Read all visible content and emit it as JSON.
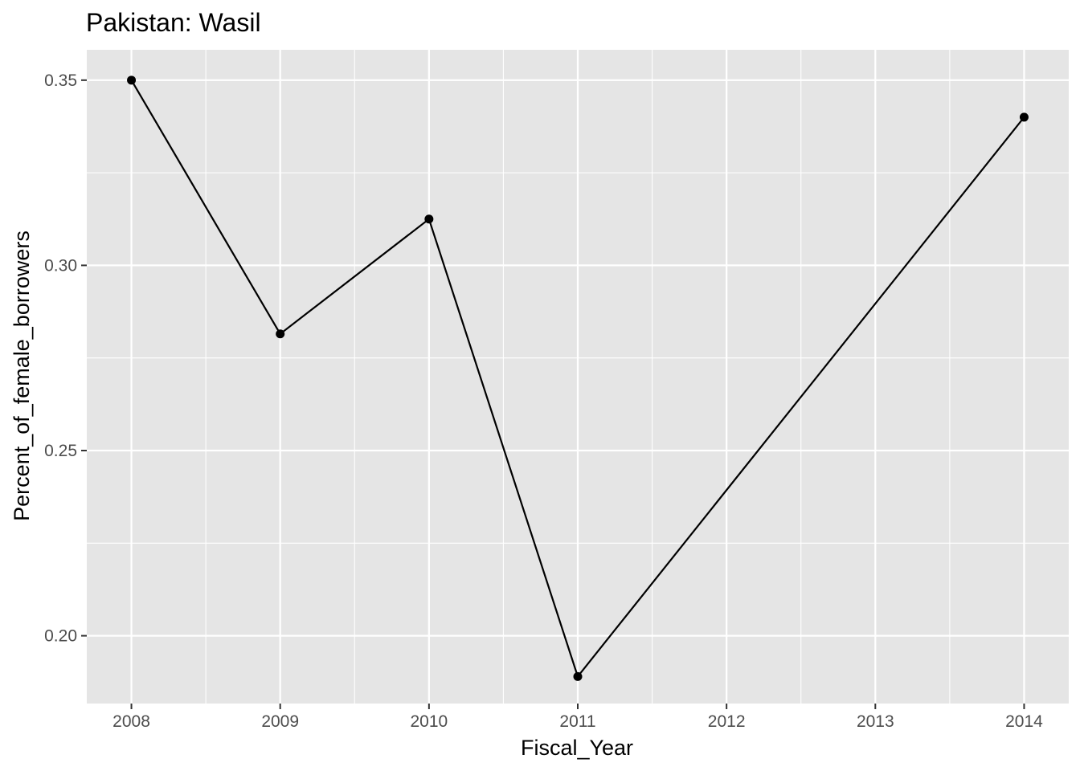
{
  "chart_data": {
    "type": "line",
    "title": "Pakistan:  Wasil",
    "xlabel": "Fiscal_Year",
    "ylabel": "Percent_of_female_borrowers",
    "x": [
      2008,
      2009,
      2010,
      2011,
      2014
    ],
    "series": [
      {
        "values": [
          0.35,
          0.2815,
          0.3125,
          0.189,
          0.34
        ]
      }
    ],
    "xlim": [
      2007.7,
      2014.3
    ],
    "ylim": [
      0.1817,
      0.3582
    ],
    "x_ticks": [
      2008,
      2009,
      2010,
      2011,
      2012,
      2013,
      2014
    ],
    "x_tick_labels": [
      "2008",
      "2009",
      "2010",
      "2011",
      "2012",
      "2013",
      "2014"
    ],
    "y_ticks": [
      0.2,
      0.25,
      0.3,
      0.35
    ],
    "y_tick_labels": [
      "0.20",
      "0.25",
      "0.30",
      "0.35"
    ],
    "grid": true,
    "colors": {
      "panel": "#e5e5e5",
      "grid": "#ffffff",
      "line": "#000000",
      "tick_text": "#4d4d4d"
    }
  }
}
